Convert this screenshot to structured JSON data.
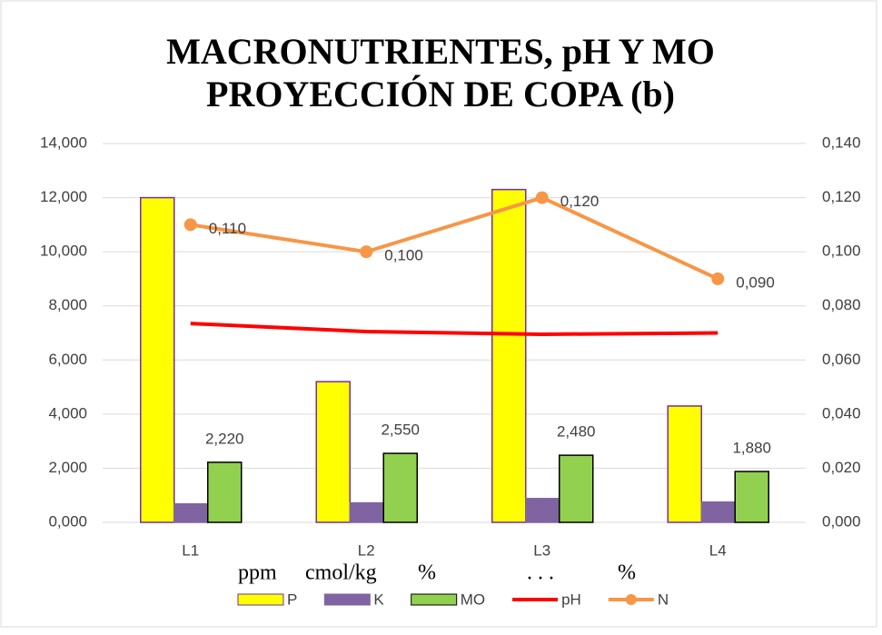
{
  "chart_data": {
    "type": "bar_line",
    "title": [
      "MACRONUTRIENTES, pH Y MO",
      "PROYECCIÓN DE COPA (b)"
    ],
    "categories": [
      "L1",
      "L2",
      "L3",
      "L4"
    ],
    "series": [
      {
        "name": "P",
        "kind": "bar",
        "color": "#ffff00",
        "stroke": "#7030a0",
        "values": [
          12.0,
          5.2,
          12.3,
          4.3
        ]
      },
      {
        "name": "K",
        "kind": "bar",
        "color": "#8064a2",
        "stroke": "#8064a2",
        "values": [
          0.68,
          0.72,
          0.88,
          0.75
        ]
      },
      {
        "name": "MO",
        "kind": "bar",
        "color": "#92d050",
        "stroke": "#000000",
        "values": [
          2.22,
          2.55,
          2.48,
          1.88
        ],
        "value_labels": [
          "2,220",
          "2,550",
          "2,480",
          "1,880"
        ]
      },
      {
        "name": "pH",
        "kind": "line",
        "color": "#ff0000",
        "values": [
          7.35,
          7.05,
          6.95,
          7.0
        ]
      },
      {
        "name": "N",
        "kind": "line",
        "color": "#f79646",
        "axis": "y2",
        "markers": true,
        "values": [
          0.11,
          0.1,
          0.12,
          0.09
        ],
        "value_labels": [
          "0,110",
          "0,100",
          "0,120",
          "0,090"
        ]
      }
    ],
    "legend_units": [
      "ppm",
      "cmol/kg",
      "%",
      ". . .",
      "%"
    ],
    "ylim": [
      0,
      14
    ],
    "yticks": [
      {
        "value": 0,
        "label": "0,000"
      },
      {
        "value": 2,
        "label": "2,000"
      },
      {
        "value": 4,
        "label": "4,000"
      },
      {
        "value": 6,
        "label": "6,000"
      },
      {
        "value": 8,
        "label": "8,000"
      },
      {
        "value": 10,
        "label": "10,000"
      },
      {
        "value": 12,
        "label": "12,000"
      },
      {
        "value": 14,
        "label": "14,000"
      }
    ],
    "y2lim": [
      0,
      0.14
    ],
    "y2ticks": [
      {
        "value": 0,
        "label": "0,000"
      },
      {
        "value": 0.02,
        "label": "0,020"
      },
      {
        "value": 0.04,
        "label": "0,040"
      },
      {
        "value": 0.06,
        "label": "0,060"
      },
      {
        "value": 0.08,
        "label": "0,080"
      },
      {
        "value": 0.1,
        "label": "0,100"
      },
      {
        "value": 0.12,
        "label": "0,120"
      },
      {
        "value": 0.14,
        "label": "0,140"
      }
    ],
    "grid": true,
    "legend": "bottom"
  }
}
